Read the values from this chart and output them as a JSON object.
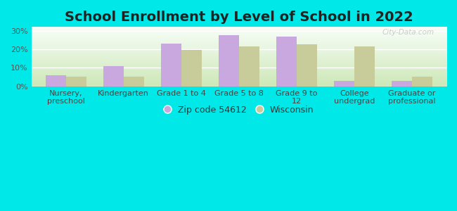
{
  "title": "School Enrollment by Level of School in 2022",
  "categories": [
    "Nursery,\npreschool",
    "Kindergarten",
    "Grade 1 to 4",
    "Grade 5 to 8",
    "Grade 9 to\n12",
    "College\nundergrad",
    "Graduate or\nprofessional"
  ],
  "zip_values": [
    6.0,
    11.0,
    23.0,
    27.5,
    27.0,
    3.0,
    3.0
  ],
  "wi_values": [
    5.0,
    5.0,
    19.5,
    21.5,
    22.5,
    21.5,
    5.0
  ],
  "zip_color": "#c9a8e0",
  "wi_color": "#c8cc9a",
  "background_outer": "#00e8e8",
  "background_inner_top": "#ffffff",
  "background_inner_bottom": "#d0e8c0",
  "ylabel_ticks": [
    "0%",
    "10%",
    "20%",
    "30%"
  ],
  "ytick_vals": [
    0,
    10,
    20,
    30
  ],
  "ylim": [
    0,
    32
  ],
  "legend_zip_label": "Zip code 54612",
  "legend_wi_label": "Wisconsin",
  "title_fontsize": 14,
  "tick_fontsize": 8,
  "legend_fontsize": 9,
  "bar_width": 0.35,
  "watermark": "City-Data.com"
}
